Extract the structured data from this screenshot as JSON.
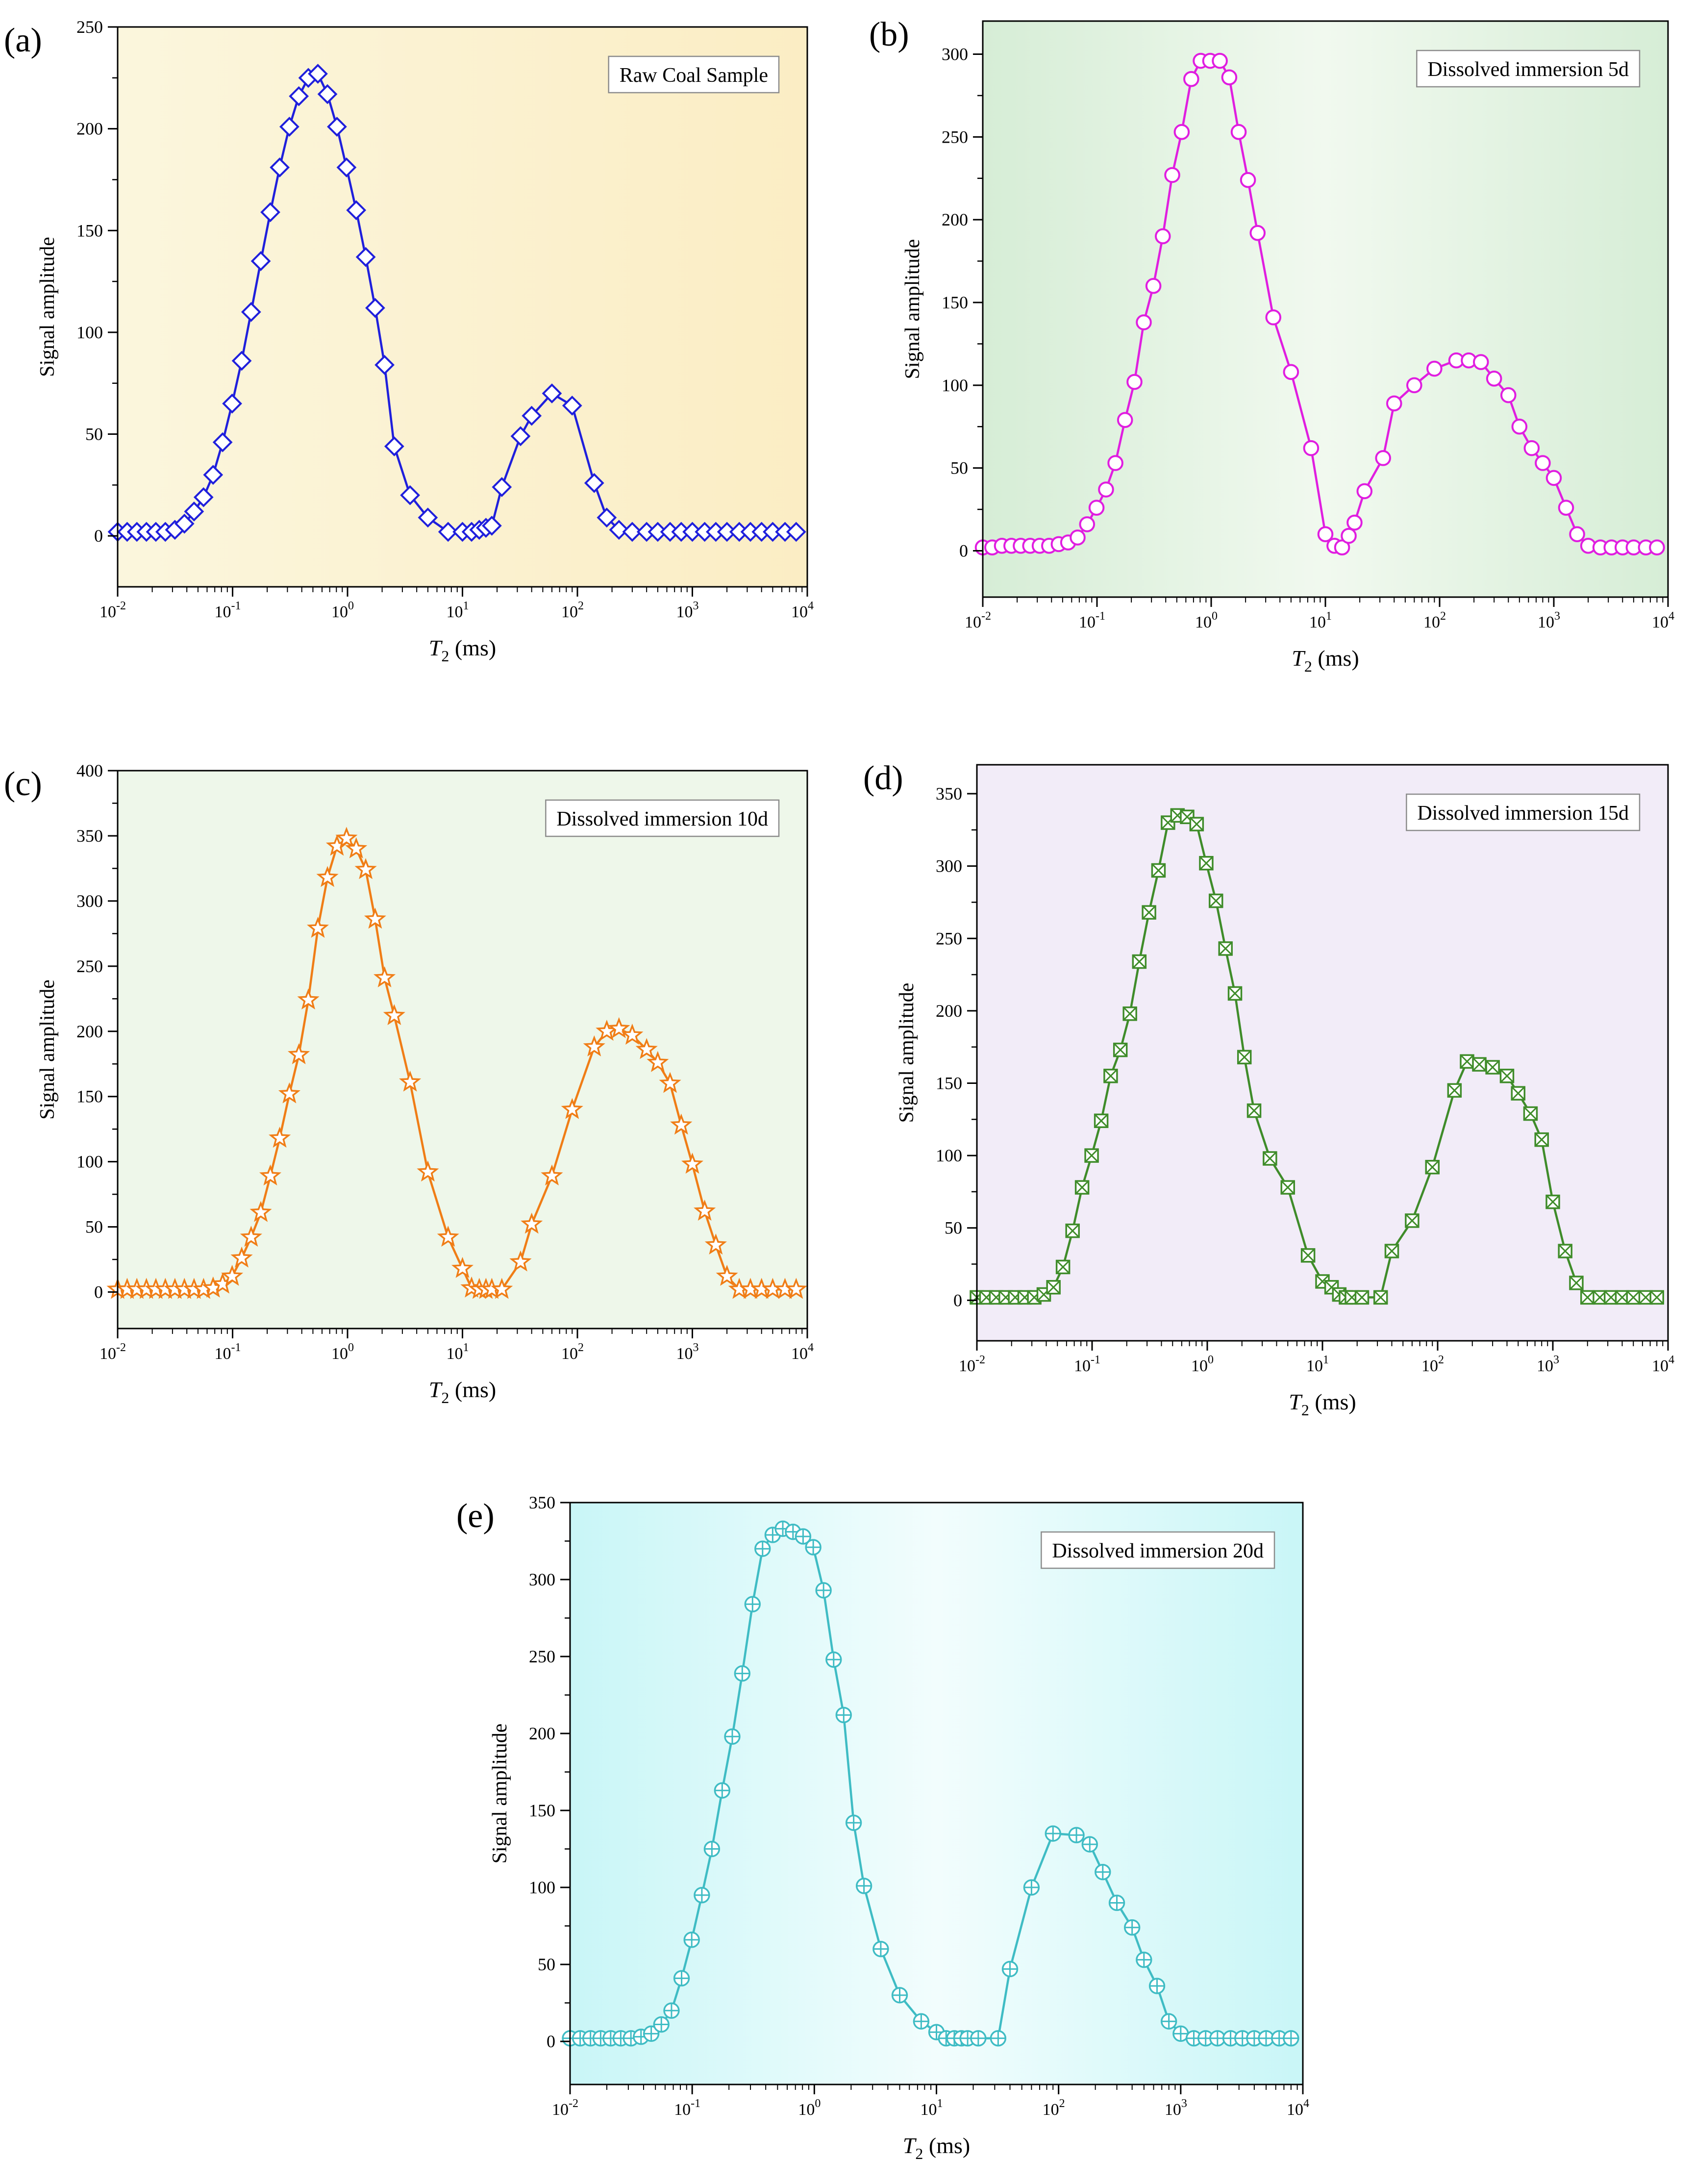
{
  "chart_data": [
    {
      "panel_label": "(a)",
      "type": "line",
      "title": "Raw Coal Sample",
      "xlabel": "T",
      "xlabel_sub": "2",
      "xlabel_unit": " (ms)",
      "ylabel": "Signal amplitude",
      "xscale": "log",
      "xlim": [
        0.01,
        10000
      ],
      "ylim": [
        -25,
        250
      ],
      "yticks": [
        0,
        50,
        100,
        150,
        200,
        250
      ],
      "xticks": [
        {
          "base": "10",
          "exp": "-2"
        },
        {
          "base": "10",
          "exp": "-1"
        },
        {
          "base": "10",
          "exp": "0"
        },
        {
          "base": "10",
          "exp": "1"
        },
        {
          "base": "10",
          "exp": "2"
        },
        {
          "base": "10",
          "exp": "3"
        },
        {
          "base": "10",
          "exp": "4"
        }
      ],
      "legend_position": "top-right",
      "marker": "diamond",
      "color": "#1f1fdc",
      "background": [
        "#fbf6dd",
        "#fbedc4"
      ],
      "x": [
        0.01,
        0.0121,
        0.0147,
        0.0178,
        0.0215,
        0.026,
        0.0315,
        0.0381,
        0.0462,
        0.0559,
        0.0677,
        0.0819,
        0.0991,
        0.12,
        0.145,
        0.176,
        0.213,
        0.257,
        0.312,
        0.377,
        0.456,
        0.552,
        0.669,
        0.809,
        0.98,
        1.19,
        1.44,
        1.74,
        2.1,
        2.55,
        3.5,
        5,
        7.5,
        10,
        12,
        14,
        16,
        18,
        22,
        32,
        40,
        60,
        90,
        140,
        180,
        230,
        300,
        400,
        500,
        640,
        800,
        1000,
        1280,
        1600,
        2000,
        2560,
        3200,
        4000,
        5000,
        6400,
        8000
      ],
      "values": [
        2,
        2,
        2,
        2,
        2,
        2,
        3,
        6,
        12,
        19,
        30,
        46,
        65,
        86,
        110,
        135,
        159,
        181,
        201,
        216,
        225,
        227,
        217,
        201,
        181,
        160,
        137,
        112,
        84,
        44,
        20,
        9,
        2,
        2,
        2,
        3,
        4,
        5,
        24,
        49,
        59,
        70,
        64,
        26,
        9,
        3,
        2,
        2,
        2,
        2,
        2,
        2,
        2,
        2,
        2,
        2,
        2,
        2,
        2,
        2,
        2
      ]
    },
    {
      "panel_label": "(b)",
      "type": "line",
      "title": "Dissolved immersion 5d",
      "xlabel": "T",
      "xlabel_sub": "2",
      "xlabel_unit": " (ms)",
      "ylabel": "Signal amplitude",
      "xscale": "log",
      "xlim": [
        0.01,
        10000
      ],
      "ylim": [
        -28,
        320
      ],
      "yticks": [
        0,
        50,
        100,
        150,
        200,
        250,
        300
      ],
      "xticks": [
        {
          "base": "10",
          "exp": "-2"
        },
        {
          "base": "10",
          "exp": "-1"
        },
        {
          "base": "10",
          "exp": "0"
        },
        {
          "base": "10",
          "exp": "1"
        },
        {
          "base": "10",
          "exp": "2"
        },
        {
          "base": "10",
          "exp": "3"
        },
        {
          "base": "10",
          "exp": "4"
        }
      ],
      "legend_position": "top-right",
      "marker": "circle",
      "color": "#e01ee0",
      "background": [
        "#d6edd6",
        "#f1f9ef",
        "#d6edd6"
      ],
      "x": [
        0.01,
        0.0121,
        0.0147,
        0.0178,
        0.0215,
        0.026,
        0.0315,
        0.0381,
        0.0462,
        0.0559,
        0.0677,
        0.0819,
        0.0991,
        0.12,
        0.145,
        0.176,
        0.213,
        0.257,
        0.312,
        0.377,
        0.456,
        0.552,
        0.669,
        0.809,
        0.98,
        1.19,
        1.44,
        1.74,
        2.1,
        2.55,
        3.5,
        5,
        7.5,
        10,
        12,
        14,
        16,
        18,
        22,
        32,
        40,
        60,
        90,
        140,
        180,
        230,
        300,
        400,
        500,
        640,
        800,
        1000,
        1280,
        1600,
        2000,
        2560,
        3200,
        4000,
        5000,
        6400,
        8000
      ],
      "values": [
        2,
        2,
        3,
        3,
        3,
        3,
        3,
        3,
        4,
        5,
        8,
        16,
        26,
        37,
        53,
        79,
        102,
        138,
        160,
        190,
        227,
        253,
        285,
        296,
        296,
        296,
        286,
        253,
        224,
        192,
        141,
        108,
        62,
        10,
        3,
        2,
        9,
        17,
        36,
        56,
        89,
        100,
        110,
        115,
        115,
        114,
        104,
        94,
        75,
        62,
        53,
        44,
        26,
        10,
        3,
        2,
        2,
        2,
        2,
        2,
        2
      ]
    },
    {
      "panel_label": "(c)",
      "type": "line",
      "title": "Dissolved immersion 10d",
      "xlabel": "T",
      "xlabel_sub": "2",
      "xlabel_unit": " (ms)",
      "ylabel": "Signal amplitude",
      "xscale": "log",
      "xlim": [
        0.01,
        10000
      ],
      "ylim": [
        -28,
        400
      ],
      "yticks": [
        0,
        50,
        100,
        150,
        200,
        250,
        300,
        350,
        400
      ],
      "xticks": [
        {
          "base": "10",
          "exp": "-2"
        },
        {
          "base": "10",
          "exp": "-1"
        },
        {
          "base": "10",
          "exp": "0"
        },
        {
          "base": "10",
          "exp": "1"
        },
        {
          "base": "10",
          "exp": "2"
        },
        {
          "base": "10",
          "exp": "3"
        },
        {
          "base": "10",
          "exp": "4"
        }
      ],
      "legend_position": "top-right",
      "marker": "star",
      "color": "#f07d16",
      "background": [
        "#eef7ea",
        "#eef7ea"
      ],
      "x": [
        0.01,
        0.0121,
        0.0147,
        0.0178,
        0.0215,
        0.026,
        0.0315,
        0.0381,
        0.0462,
        0.0559,
        0.0677,
        0.0819,
        0.0991,
        0.12,
        0.145,
        0.176,
        0.213,
        0.257,
        0.312,
        0.377,
        0.456,
        0.552,
        0.669,
        0.809,
        0.98,
        1.19,
        1.44,
        1.74,
        2.1,
        2.55,
        3.5,
        5,
        7.5,
        10,
        12,
        14,
        16,
        18,
        22,
        32,
        40,
        60,
        90,
        140,
        180,
        230,
        300,
        400,
        500,
        640,
        800,
        1000,
        1280,
        1600,
        2000,
        2560,
        3200,
        4000,
        5000,
        6400,
        8000
      ],
      "values": [
        2,
        2,
        2,
        2,
        2,
        2,
        2,
        2,
        2,
        2,
        3,
        6,
        12,
        26,
        42,
        61,
        89,
        118,
        152,
        182,
        224,
        279,
        318,
        342,
        348,
        340,
        324,
        286,
        241,
        212,
        161,
        92,
        42,
        18,
        3,
        2,
        2,
        2,
        2,
        23,
        52,
        89,
        140,
        188,
        200,
        202,
        197,
        186,
        176,
        160,
        128,
        98,
        62,
        36,
        12,
        2,
        2,
        2,
        2,
        2,
        2
      ]
    },
    {
      "panel_label": "(d)",
      "type": "line",
      "title": "Dissolved immersion 15d",
      "xlabel": "T",
      "xlabel_sub": "2",
      "xlabel_unit": " (ms)",
      "ylabel": "Signal amplitude",
      "xscale": "log",
      "xlim": [
        0.01,
        10000
      ],
      "ylim": [
        -28,
        370
      ],
      "yticks": [
        0,
        50,
        100,
        150,
        200,
        250,
        300,
        350
      ],
      "xticks": [
        {
          "base": "10",
          "exp": "-2"
        },
        {
          "base": "10",
          "exp": "-1"
        },
        {
          "base": "10",
          "exp": "0"
        },
        {
          "base": "10",
          "exp": "1"
        },
        {
          "base": "10",
          "exp": "2"
        },
        {
          "base": "10",
          "exp": "3"
        },
        {
          "base": "10",
          "exp": "4"
        }
      ],
      "legend_position": "top-right",
      "marker": "boxx",
      "color": "#3f8c2a",
      "background": [
        "#f2ecf8",
        "#f2ecf8"
      ],
      "x": [
        0.01,
        0.0121,
        0.0147,
        0.0178,
        0.0215,
        0.026,
        0.0315,
        0.0381,
        0.0462,
        0.0559,
        0.0677,
        0.0819,
        0.0991,
        0.12,
        0.145,
        0.176,
        0.213,
        0.257,
        0.312,
        0.377,
        0.456,
        0.552,
        0.669,
        0.809,
        0.98,
        1.19,
        1.44,
        1.74,
        2.1,
        2.55,
        3.5,
        5,
        7.5,
        10,
        12,
        14,
        16,
        18,
        22,
        32,
        40,
        60,
        90,
        140,
        180,
        230,
        300,
        400,
        500,
        640,
        800,
        1000,
        1280,
        1600,
        2000,
        2560,
        3200,
        4000,
        5000,
        6400,
        8000
      ],
      "values": [
        2,
        2,
        2,
        2,
        2,
        2,
        2,
        4,
        9,
        23,
        48,
        78,
        100,
        124,
        155,
        173,
        198,
        234,
        268,
        297,
        330,
        335,
        334,
        329,
        302,
        276,
        243,
        212,
        168,
        131,
        98,
        78,
        31,
        13,
        9,
        4,
        2,
        2,
        2,
        2,
        34,
        55,
        92,
        145,
        165,
        163,
        161,
        155,
        143,
        129,
        111,
        68,
        34,
        12,
        2,
        2,
        2,
        2,
        2,
        2,
        2
      ]
    },
    {
      "panel_label": "(e)",
      "type": "line",
      "title": "Dissolved immersion 20d",
      "xlabel": "T",
      "xlabel_sub": "2",
      "xlabel_unit": " (ms)",
      "ylabel": "Signal amplitude",
      "xscale": "log",
      "xlim": [
        0.01,
        10000
      ],
      "ylim": [
        -28,
        350
      ],
      "yticks": [
        0,
        50,
        100,
        150,
        200,
        250,
        300,
        350
      ],
      "xticks": [
        {
          "base": "10",
          "exp": "-2"
        },
        {
          "base": "10",
          "exp": "-1"
        },
        {
          "base": "10",
          "exp": "0"
        },
        {
          "base": "10",
          "exp": "1"
        },
        {
          "base": "10",
          "exp": "2"
        },
        {
          "base": "10",
          "exp": "3"
        },
        {
          "base": "10",
          "exp": "4"
        }
      ],
      "legend_position": "top-right",
      "marker": "circleplus",
      "color": "#3fbcc4",
      "background": [
        "#c9f6f7",
        "#f2fdfd",
        "#c9f6f7"
      ],
      "x": [
        0.01,
        0.0121,
        0.0147,
        0.0178,
        0.0215,
        0.026,
        0.0315,
        0.0381,
        0.0462,
        0.0559,
        0.0677,
        0.0819,
        0.0991,
        0.12,
        0.145,
        0.176,
        0.213,
        0.257,
        0.312,
        0.377,
        0.456,
        0.552,
        0.669,
        0.809,
        0.98,
        1.19,
        1.44,
        1.74,
        2.1,
        2.55,
        3.5,
        5,
        7.5,
        10,
        12,
        14,
        16,
        18,
        22,
        32,
        40,
        60,
        90,
        140,
        180,
        230,
        300,
        400,
        500,
        640,
        800,
        1000,
        1280,
        1600,
        2000,
        2560,
        3200,
        4000,
        5000,
        6400,
        8000
      ],
      "values": [
        2,
        2,
        2,
        2,
        2,
        2,
        2,
        3,
        5,
        11,
        20,
        41,
        66,
        95,
        125,
        163,
        198,
        239,
        284,
        320,
        329,
        333,
        331,
        328,
        321,
        293,
        248,
        212,
        142,
        101,
        60,
        30,
        13,
        6,
        2,
        2,
        2,
        2,
        2,
        2,
        47,
        100,
        135,
        134,
        128,
        110,
        90,
        74,
        53,
        36,
        13,
        5,
        2,
        2,
        2,
        2,
        2,
        2,
        2,
        2,
        2
      ]
    }
  ]
}
